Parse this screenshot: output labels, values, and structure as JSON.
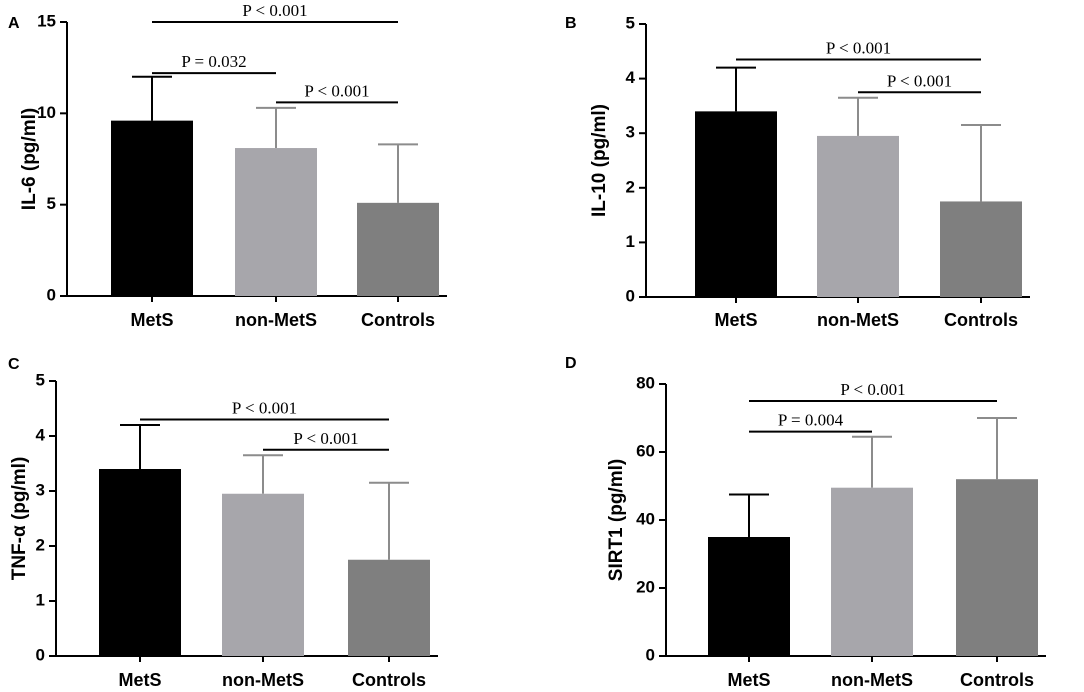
{
  "figure": {
    "colors": {
      "MetS": "#000000",
      "non-MetS": "#a7a6ab",
      "Controls": "#7f7f7f",
      "axis": "#000000",
      "error": "#000000",
      "error_light": "#8c8c8c"
    }
  },
  "chart_data": [
    {
      "panel": "A",
      "type": "bar",
      "title": "",
      "xlabel": "",
      "ylabel": "IL-6 (pg/ml)",
      "ylim": [
        0,
        15
      ],
      "yticks": [
        "0",
        "5",
        "10",
        "15"
      ],
      "categories": [
        "MetS",
        "non-MetS",
        "Controls"
      ],
      "values": [
        9.6,
        8.1,
        5.1
      ],
      "errors": [
        2.4,
        2.2,
        3.2
      ],
      "significance": [
        {
          "from": 0,
          "to": 2,
          "label": "P < 0.001",
          "level": 15
        },
        {
          "from": 0,
          "to": 1,
          "label": "P = 0.032",
          "level": 12.2
        },
        {
          "from": 1,
          "to": 2,
          "label": "P < 0.001",
          "level": 10.6
        }
      ]
    },
    {
      "panel": "B",
      "type": "bar",
      "title": "",
      "xlabel": "",
      "ylabel": "IL-10 (pg/ml)",
      "ylim": [
        0,
        5
      ],
      "yticks": [
        "0",
        "1",
        "2",
        "3",
        "4",
        "5"
      ],
      "categories": [
        "MetS",
        "non-MetS",
        "Controls"
      ],
      "values": [
        3.4,
        2.95,
        1.75
      ],
      "errors": [
        0.8,
        0.7,
        1.4
      ],
      "significance": [
        {
          "from": 0,
          "to": 2,
          "label": "P < 0.001",
          "level": 4.35
        },
        {
          "from": 1,
          "to": 2,
          "label": "P < 0.001",
          "level": 3.75
        }
      ]
    },
    {
      "panel": "C",
      "type": "bar",
      "title": "",
      "xlabel": "",
      "ylabel": "TNF-α (pg/ml)",
      "ylim": [
        0,
        5
      ],
      "yticks": [
        "0",
        "1",
        "2",
        "3",
        "4",
        "5"
      ],
      "categories": [
        "MetS",
        "non-MetS",
        "Controls"
      ],
      "values": [
        3.4,
        2.95,
        1.75
      ],
      "errors": [
        0.8,
        0.7,
        1.4
      ],
      "significance": [
        {
          "from": 0,
          "to": 2,
          "label": "P < 0.001",
          "level": 4.3
        },
        {
          "from": 1,
          "to": 2,
          "label": "P < 0.001",
          "level": 3.75
        }
      ]
    },
    {
      "panel": "D",
      "type": "bar",
      "title": "",
      "xlabel": "",
      "ylabel": "SIRT1 (pg/ml)",
      "ylim": [
        0,
        80
      ],
      "yticks": [
        "0",
        "20",
        "40",
        "60",
        "80"
      ],
      "categories": [
        "MetS",
        "non-MetS",
        "Controls"
      ],
      "values": [
        35,
        49.5,
        52
      ],
      "errors": [
        12.5,
        15,
        18
      ],
      "significance": [
        {
          "from": 0,
          "to": 2,
          "label": "P < 0.001",
          "level": 75
        },
        {
          "from": 0,
          "to": 1,
          "label": "P = 0.004",
          "level": 66
        }
      ]
    }
  ]
}
